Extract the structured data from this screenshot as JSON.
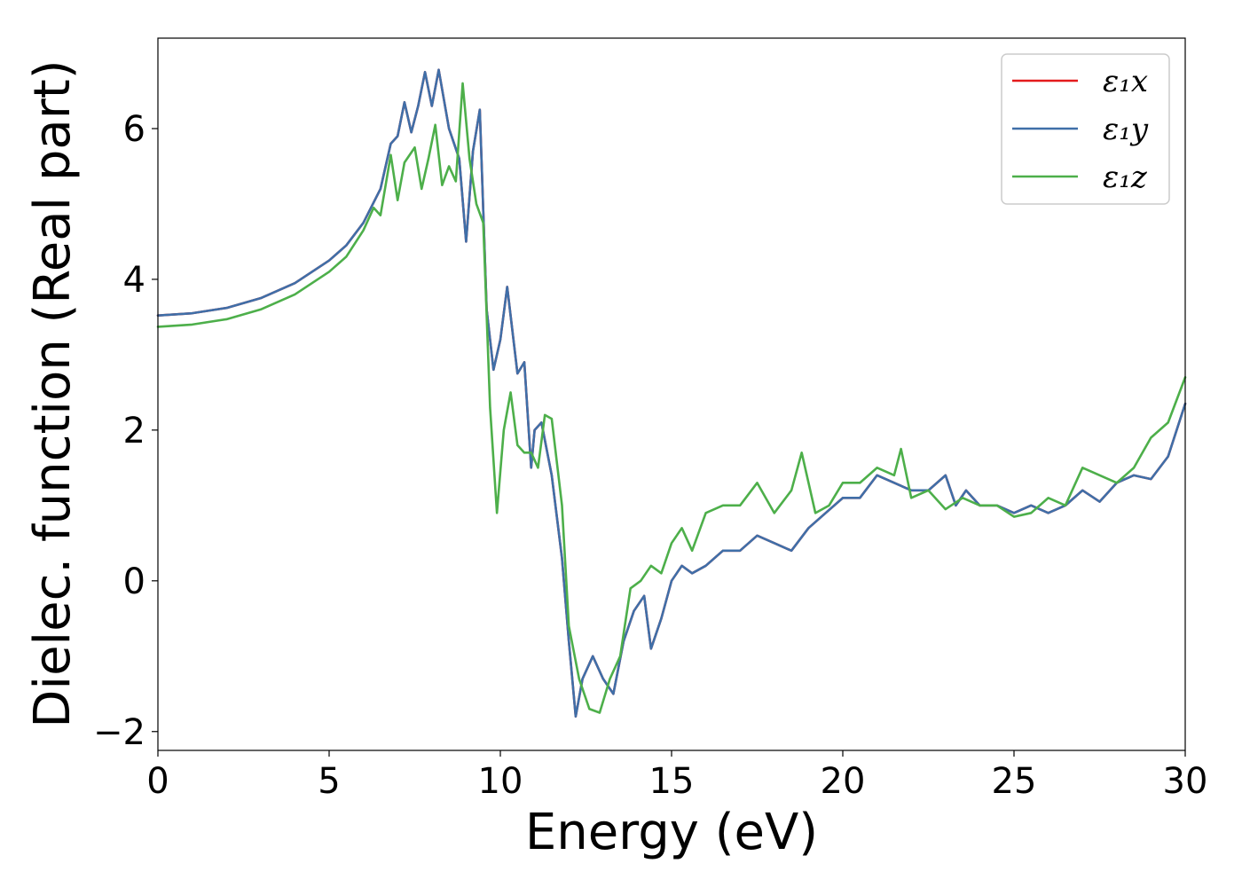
{
  "chart_data": {
    "type": "line",
    "title": "",
    "xlabel": "Energy (eV)",
    "ylabel": "Dielec. function (Real part)",
    "xlim": [
      0,
      30
    ],
    "ylim": [
      -2.25,
      7.2
    ],
    "xticks": [
      0,
      5,
      10,
      15,
      20,
      25,
      30
    ],
    "xtick_labels": [
      "0",
      "5",
      "10",
      "15",
      "20",
      "25",
      "30"
    ],
    "yticks": [
      -2,
      0,
      2,
      4,
      6
    ],
    "ytick_labels": [
      "−2",
      "0",
      "2",
      "4",
      "6"
    ],
    "grid": false,
    "legend_position": "top-right",
    "series": [
      {
        "name": "ε₁x",
        "color": "#e41a1c",
        "x": [
          0,
          1,
          2,
          3,
          4,
          5,
          5.5,
          6,
          6.5,
          6.8,
          7,
          7.2,
          7.4,
          7.6,
          7.8,
          8.0,
          8.2,
          8.5,
          8.8,
          9.0,
          9.2,
          9.4,
          9.6,
          9.8,
          10.0,
          10.2,
          10.5,
          10.7,
          10.9,
          11.0,
          11.2,
          11.5,
          11.8,
          12.0,
          12.2,
          12.4,
          12.7,
          13.0,
          13.3,
          13.6,
          13.9,
          14.2,
          14.4,
          14.7,
          15.0,
          15.3,
          15.6,
          16.0,
          16.5,
          17.0,
          17.5,
          18.0,
          18.5,
          19.0,
          19.5,
          20.0,
          20.5,
          21.0,
          21.5,
          22.0,
          22.5,
          23.0,
          23.3,
          23.6,
          24.0,
          24.5,
          25.0,
          25.5,
          26.0,
          26.5,
          27.0,
          27.5,
          28.0,
          28.5,
          29.0,
          29.5,
          30.0
        ],
        "y": [
          3.52,
          3.55,
          3.62,
          3.75,
          3.95,
          4.25,
          4.45,
          4.75,
          5.2,
          5.8,
          5.9,
          6.35,
          5.95,
          6.3,
          6.75,
          6.3,
          6.78,
          6.0,
          5.6,
          4.5,
          5.7,
          6.25,
          3.6,
          2.8,
          3.2,
          3.9,
          2.75,
          2.9,
          1.5,
          2.0,
          2.1,
          1.4,
          0.3,
          -0.8,
          -1.8,
          -1.3,
          -1.0,
          -1.3,
          -1.5,
          -0.8,
          -0.4,
          -0.2,
          -0.9,
          -0.5,
          0.0,
          0.2,
          0.1,
          0.2,
          0.4,
          0.4,
          0.6,
          0.5,
          0.4,
          0.7,
          0.9,
          1.1,
          1.1,
          1.4,
          1.3,
          1.2,
          1.2,
          1.4,
          1.0,
          1.2,
          1.0,
          1.0,
          0.9,
          1.0,
          0.9,
          1.0,
          1.2,
          1.05,
          1.3,
          1.4,
          1.35,
          1.65,
          2.35
        ]
      },
      {
        "name": "ε₁y",
        "color": "#3f6fa8",
        "x": [
          0,
          1,
          2,
          3,
          4,
          5,
          5.5,
          6,
          6.5,
          6.8,
          7,
          7.2,
          7.4,
          7.6,
          7.8,
          8.0,
          8.2,
          8.5,
          8.8,
          9.0,
          9.2,
          9.4,
          9.6,
          9.8,
          10.0,
          10.2,
          10.5,
          10.7,
          10.9,
          11.0,
          11.2,
          11.5,
          11.8,
          12.0,
          12.2,
          12.4,
          12.7,
          13.0,
          13.3,
          13.6,
          13.9,
          14.2,
          14.4,
          14.7,
          15.0,
          15.3,
          15.6,
          16.0,
          16.5,
          17.0,
          17.5,
          18.0,
          18.5,
          19.0,
          19.5,
          20.0,
          20.5,
          21.0,
          21.5,
          22.0,
          22.5,
          23.0,
          23.3,
          23.6,
          24.0,
          24.5,
          25.0,
          25.5,
          26.0,
          26.5,
          27.0,
          27.5,
          28.0,
          28.5,
          29.0,
          29.5,
          30.0
        ],
        "y": [
          3.52,
          3.55,
          3.62,
          3.75,
          3.95,
          4.25,
          4.45,
          4.75,
          5.2,
          5.8,
          5.9,
          6.35,
          5.95,
          6.3,
          6.75,
          6.3,
          6.78,
          6.0,
          5.6,
          4.5,
          5.7,
          6.25,
          3.6,
          2.8,
          3.2,
          3.9,
          2.75,
          2.9,
          1.5,
          2.0,
          2.1,
          1.4,
          0.3,
          -0.8,
          -1.8,
          -1.3,
          -1.0,
          -1.3,
          -1.5,
          -0.8,
          -0.4,
          -0.2,
          -0.9,
          -0.5,
          0.0,
          0.2,
          0.1,
          0.2,
          0.4,
          0.4,
          0.6,
          0.5,
          0.4,
          0.7,
          0.9,
          1.1,
          1.1,
          1.4,
          1.3,
          1.2,
          1.2,
          1.4,
          1.0,
          1.2,
          1.0,
          1.0,
          0.9,
          1.0,
          0.9,
          1.0,
          1.2,
          1.05,
          1.3,
          1.4,
          1.35,
          1.65,
          2.35
        ]
      },
      {
        "name": "ε₁z",
        "color": "#4daf4a",
        "x": [
          0,
          1,
          2,
          3,
          4,
          5,
          5.5,
          6,
          6.3,
          6.5,
          6.8,
          7.0,
          7.2,
          7.5,
          7.7,
          7.9,
          8.1,
          8.3,
          8.5,
          8.7,
          8.9,
          9.1,
          9.3,
          9.5,
          9.7,
          9.9,
          10.1,
          10.3,
          10.5,
          10.7,
          10.9,
          11.1,
          11.3,
          11.5,
          11.8,
          12.0,
          12.3,
          12.6,
          12.9,
          13.2,
          13.5,
          13.8,
          14.1,
          14.4,
          14.7,
          15.0,
          15.3,
          15.6,
          16.0,
          16.5,
          17.0,
          17.5,
          18.0,
          18.5,
          18.8,
          19.2,
          19.6,
          20.0,
          20.5,
          21.0,
          21.5,
          21.7,
          22.0,
          22.5,
          23.0,
          23.5,
          24.0,
          24.5,
          25.0,
          25.5,
          26.0,
          26.5,
          27.0,
          27.5,
          28.0,
          28.5,
          29.0,
          29.5,
          30.0
        ],
        "y": [
          3.37,
          3.4,
          3.47,
          3.6,
          3.8,
          4.1,
          4.3,
          4.65,
          4.95,
          4.85,
          5.65,
          5.05,
          5.55,
          5.75,
          5.2,
          5.6,
          6.05,
          5.25,
          5.5,
          5.3,
          6.6,
          5.6,
          5.0,
          4.75,
          2.3,
          0.9,
          2.0,
          2.5,
          1.8,
          1.7,
          1.7,
          1.5,
          2.2,
          2.15,
          1.0,
          -0.6,
          -1.3,
          -1.7,
          -1.75,
          -1.3,
          -1.0,
          -0.1,
          0.0,
          0.2,
          0.1,
          0.5,
          0.7,
          0.4,
          0.9,
          1.0,
          1.0,
          1.3,
          0.9,
          1.2,
          1.7,
          0.9,
          1.0,
          1.3,
          1.3,
          1.5,
          1.4,
          1.75,
          1.1,
          1.2,
          0.95,
          1.1,
          1.0,
          1.0,
          0.85,
          0.9,
          1.1,
          1.0,
          1.5,
          1.4,
          1.3,
          1.5,
          1.9,
          2.1,
          2.7
        ]
      }
    ]
  }
}
